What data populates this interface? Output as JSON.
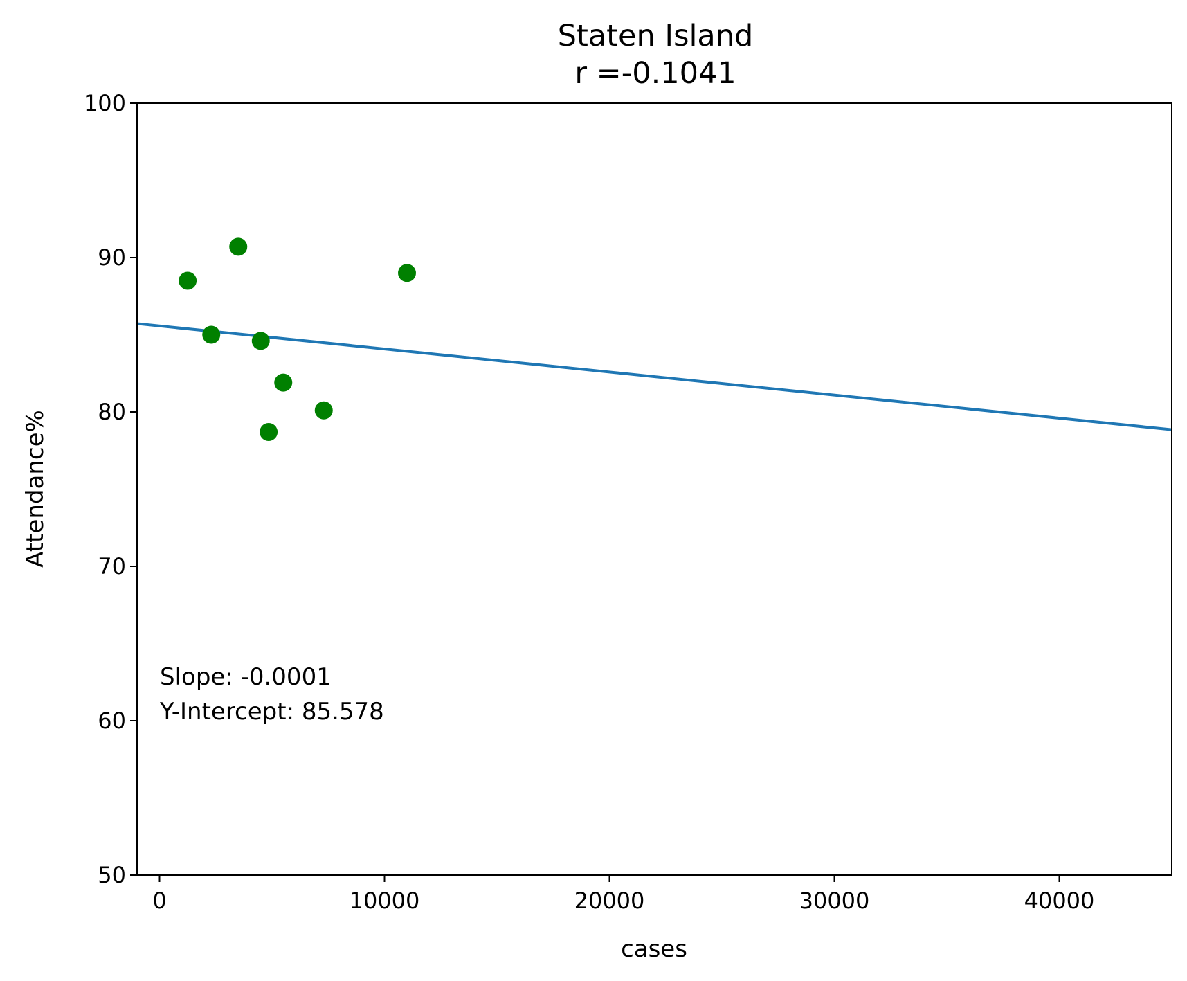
{
  "chart_data": {
    "type": "scatter",
    "title": "Staten Island",
    "subtitle": "r =-0.1041",
    "xlabel": "cases",
    "ylabel": "Attendance%",
    "xlim": [
      -1000,
      45000
    ],
    "ylim": [
      50,
      100
    ],
    "xticks": [
      0,
      10000,
      20000,
      30000,
      40000
    ],
    "xtick_labels": [
      "0",
      "10000",
      "20000",
      "30000",
      "40000"
    ],
    "yticks": [
      50,
      60,
      70,
      80,
      90,
      100
    ],
    "ytick_labels": [
      "50",
      "60",
      "70",
      "80",
      "90",
      "100"
    ],
    "grid": false,
    "series": [
      {
        "name": "points",
        "color": "#008000",
        "points": [
          {
            "x": 1250,
            "y": 88.5
          },
          {
            "x": 2300,
            "y": 85.0
          },
          {
            "x": 3500,
            "y": 90.7
          },
          {
            "x": 4500,
            "y": 84.6
          },
          {
            "x": 4850,
            "y": 78.7
          },
          {
            "x": 5500,
            "y": 81.9
          },
          {
            "x": 7300,
            "y": 80.1
          },
          {
            "x": 11000,
            "y": 89.0
          }
        ]
      }
    ],
    "fit_line": {
      "color": "#1f77b4",
      "points": [
        {
          "x": -1000,
          "y": 85.72
        },
        {
          "x": 45000,
          "y": 78.85
        }
      ]
    },
    "annotations": [
      "Slope: -0.0001",
      "Y-Intercept: 85.578"
    ],
    "axis_color": "#000000"
  }
}
